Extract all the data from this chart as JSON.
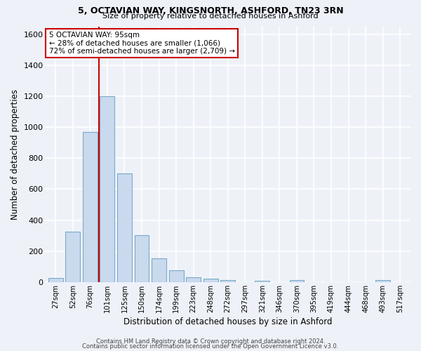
{
  "title1": "5, OCTAVIAN WAY, KINGSNORTH, ASHFORD, TN23 3RN",
  "title2": "Size of property relative to detached houses in Ashford",
  "xlabel": "Distribution of detached houses by size in Ashford",
  "ylabel": "Number of detached properties",
  "footer1": "Contains HM Land Registry data © Crown copyright and database right 2024.",
  "footer2": "Contains public sector information licensed under the Open Government Licence v3.0.",
  "annotation_line1": "5 OCTAVIAN WAY: 95sqm",
  "annotation_line2": "← 28% of detached houses are smaller (1,066)",
  "annotation_line3": "72% of semi-detached houses are larger (2,709) →",
  "bar_labels": [
    "27sqm",
    "52sqm",
    "76sqm",
    "101sqm",
    "125sqm",
    "150sqm",
    "174sqm",
    "199sqm",
    "223sqm",
    "248sqm",
    "272sqm",
    "297sqm",
    "321sqm",
    "346sqm",
    "370sqm",
    "395sqm",
    "419sqm",
    "444sqm",
    "468sqm",
    "493sqm",
    "517sqm"
  ],
  "bar_values": [
    25,
    325,
    970,
    1200,
    700,
    305,
    155,
    75,
    30,
    20,
    12,
    0,
    10,
    0,
    13,
    0,
    0,
    0,
    0,
    12,
    0
  ],
  "bar_color": "#c9d9ee",
  "bar_edge_color": "#7aaac8",
  "vline_color": "#cc0000",
  "annotation_box_color": "#ffffff",
  "annotation_box_edge": "#cc0000",
  "background_color": "#eef2f8",
  "grid_color": "#ffffff",
  "ylim": [
    0,
    1650
  ],
  "yticks": [
    0,
    200,
    400,
    600,
    800,
    1000,
    1200,
    1400,
    1600
  ]
}
